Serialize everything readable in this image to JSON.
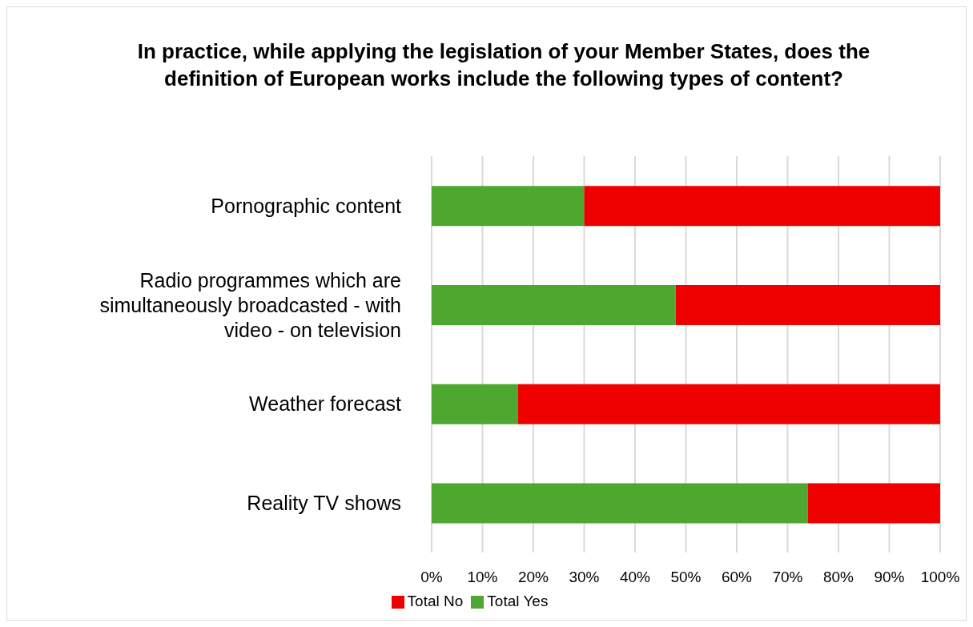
{
  "chart_data": {
    "type": "bar",
    "orientation": "horizontal",
    "stacked": true,
    "title": "In practice, while applying the legislation of your Member States, does the definition of European works include the following types of content?",
    "categories": [
      "Pornographic content",
      "Radio programmes which are simultaneously broadcasted - with video - on television",
      "Weather forecast",
      "Reality TV shows"
    ],
    "series": [
      {
        "name": "Total Yes",
        "color": "#4ea72e",
        "values": [
          30,
          48,
          17,
          74
        ]
      },
      {
        "name": "Total No",
        "color": "#ee0000",
        "values": [
          70,
          52,
          83,
          26
        ]
      }
    ],
    "xlim": [
      0,
      100
    ],
    "xticks": [
      {
        "value": 0,
        "label": "0%"
      },
      {
        "value": 10,
        "label": "10%"
      },
      {
        "value": 20,
        "label": "20%"
      },
      {
        "value": 30,
        "label": "30%"
      },
      {
        "value": 40,
        "label": "40%"
      },
      {
        "value": 50,
        "label": "50%"
      },
      {
        "value": 60,
        "label": "60%"
      },
      {
        "value": 70,
        "label": "70%"
      },
      {
        "value": 80,
        "label": "80%"
      },
      {
        "value": 90,
        "label": "90%"
      },
      {
        "value": 100,
        "label": "100%"
      }
    ],
    "grid": "x",
    "legend": "bottom"
  }
}
